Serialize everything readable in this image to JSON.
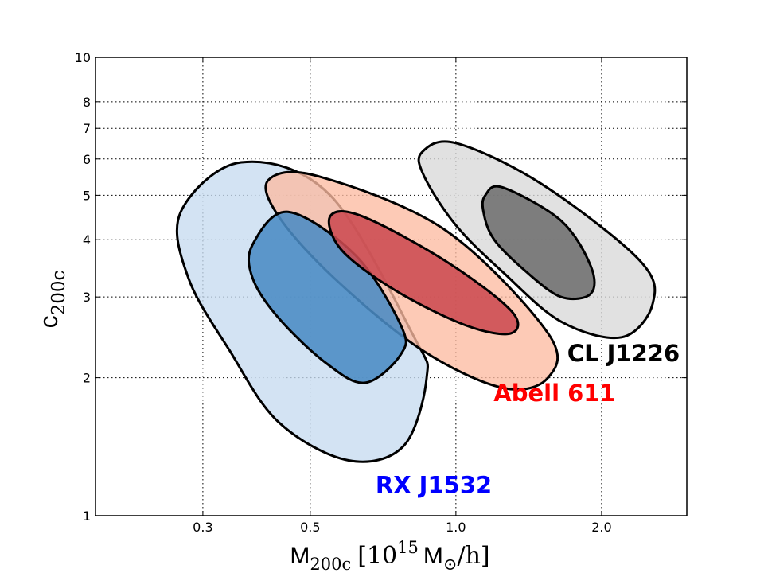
{
  "chart_data": {
    "type": "contour",
    "xscale": "log",
    "yscale": "log",
    "xlim": [
      0.18,
      3.0
    ],
    "ylim": [
      1,
      10
    ],
    "grid": true,
    "xticks": [
      {
        "value": 0.3,
        "label": "0.3"
      },
      {
        "value": 0.5,
        "label": "0.5"
      },
      {
        "value": 1.0,
        "label": "1.0"
      },
      {
        "value": 2.0,
        "label": "2.0"
      }
    ],
    "yticks": [
      {
        "value": 1,
        "label": "1"
      },
      {
        "value": 2,
        "label": "2"
      },
      {
        "value": 3,
        "label": "3"
      },
      {
        "value": 4,
        "label": "4"
      },
      {
        "value": 5,
        "label": "5"
      },
      {
        "value": 6,
        "label": "6"
      },
      {
        "value": 7,
        "label": "7"
      },
      {
        "value": 8,
        "label": "8"
      },
      {
        "value": 10,
        "label": "10"
      }
    ],
    "xlabel": {
      "main": "M",
      "sub": "200c",
      "bracket_open": "[10",
      "sup": "15",
      "unit": "M",
      "unit_sub": "⊙",
      "tail": "/h]"
    },
    "ylabel": {
      "main": "c",
      "sub": "200c"
    },
    "series": [
      {
        "name": "RX J1532",
        "label_color": "#0000ff",
        "label_pos": {
          "mass": 0.9,
          "conc": 1.12
        },
        "contours": [
          {
            "level": "outer",
            "fill": "#c6dbef",
            "polygon": [
              [
                0.27,
                4.6
              ],
              [
                0.36,
                5.9
              ],
              [
                0.55,
                5.0
              ],
              [
                0.82,
                2.45
              ],
              [
                0.87,
                2.0
              ],
              [
                0.78,
                1.42
              ],
              [
                0.6,
                1.32
              ],
              [
                0.43,
                1.6
              ],
              [
                0.34,
                2.3
              ],
              [
                0.28,
                3.3
              ]
            ]
          },
          {
            "level": "inner",
            "fill": "#4a8bc4",
            "polygon": [
              [
                0.38,
                3.9
              ],
              [
                0.45,
                4.6
              ],
              [
                0.62,
                3.7
              ],
              [
                0.77,
                2.6
              ],
              [
                0.77,
                2.25
              ],
              [
                0.65,
                1.95
              ],
              [
                0.54,
                2.15
              ],
              [
                0.43,
                2.7
              ],
              [
                0.38,
                3.3
              ]
            ]
          }
        ]
      },
      {
        "name": "Abell 611",
        "label_color": "#ff0000",
        "label_pos": {
          "mass": 1.6,
          "conc": 1.78
        },
        "contours": [
          {
            "level": "outer",
            "fill": "#fcbba1",
            "polygon": [
              [
                0.41,
                5.4
              ],
              [
                0.52,
                5.5
              ],
              [
                0.95,
                4.2
              ],
              [
                1.55,
                2.5
              ],
              [
                1.55,
                2.0
              ],
              [
                1.25,
                1.9
              ],
              [
                0.85,
                2.3
              ],
              [
                0.56,
                3.3
              ],
              [
                0.43,
                4.5
              ]
            ]
          },
          {
            "level": "inner",
            "fill": "#cc4a51",
            "polygon": [
              [
                0.55,
                4.5
              ],
              [
                0.64,
                4.5
              ],
              [
                0.95,
                3.6
              ],
              [
                1.3,
                2.8
              ],
              [
                1.3,
                2.5
              ],
              [
                1.05,
                2.6
              ],
              [
                0.75,
                3.1
              ],
              [
                0.58,
                3.8
              ]
            ]
          }
        ]
      },
      {
        "name": "CL J1226",
        "label_color": "#000000",
        "label_pos": {
          "mass": 2.22,
          "conc": 2.17
        },
        "contours": [
          {
            "level": "outer",
            "fill": "#d9d9d9",
            "polygon": [
              [
                0.85,
                6.2
              ],
              [
                1.0,
                6.5
              ],
              [
                1.5,
                5.3
              ],
              [
                2.4,
                3.6
              ],
              [
                2.55,
                2.9
              ],
              [
                2.2,
                2.45
              ],
              [
                1.65,
                2.65
              ],
              [
                1.25,
                3.4
              ],
              [
                1.0,
                4.3
              ],
              [
                0.86,
                5.5
              ]
            ]
          },
          {
            "level": "inner",
            "fill": "#6e6e6e",
            "polygon": [
              [
                1.15,
                5.0
              ],
              [
                1.25,
                5.2
              ],
              [
                1.65,
                4.4
              ],
              [
                1.9,
                3.5
              ],
              [
                1.9,
                3.05
              ],
              [
                1.65,
                3.0
              ],
              [
                1.4,
                3.4
              ],
              [
                1.2,
                4.0
              ],
              [
                1.14,
                4.6
              ]
            ]
          }
        ]
      }
    ]
  }
}
